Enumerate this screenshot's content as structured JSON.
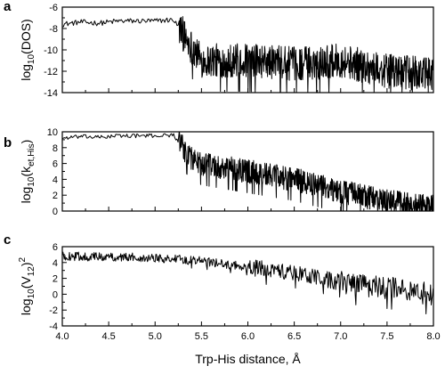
{
  "chart_data": [
    {
      "type": "line",
      "panel": "a",
      "ylabel": {
        "main": "log",
        "sub": "10",
        "rest": "(DOS)",
        "sup": ""
      },
      "xlim": [
        4.0,
        8.0
      ],
      "ylim": [
        -14,
        -6
      ],
      "yticks": [
        "-6",
        "-8",
        "-10",
        "-12",
        "-14"
      ],
      "xticks_shown": false,
      "approx_points": [
        [
          4.0,
          -7.6
        ],
        [
          4.2,
          -7.4
        ],
        [
          4.4,
          -7.5
        ],
        [
          4.6,
          -7.3
        ],
        [
          4.8,
          -7.3
        ],
        [
          5.0,
          -7.3
        ],
        [
          5.15,
          -7.2
        ],
        [
          5.2,
          -7.2
        ],
        [
          5.3,
          -8.5
        ],
        [
          5.4,
          -9.8
        ],
        [
          5.5,
          -11.0
        ],
        [
          6.0,
          -11.0
        ],
        [
          6.5,
          -11.3
        ],
        [
          7.0,
          -11.0
        ],
        [
          7.5,
          -12.0
        ],
        [
          8.0,
          -12.3
        ]
      ]
    },
    {
      "type": "line",
      "panel": "b",
      "ylabel": {
        "main": "log",
        "sub": "10",
        "rest": "(k",
        "sub2": "et,His",
        "tail": ")"
      },
      "xlim": [
        4.0,
        8.0
      ],
      "ylim": [
        0,
        10
      ],
      "yticks": [
        "10",
        "8",
        "6",
        "4",
        "2",
        "0"
      ],
      "xticks_shown": false,
      "approx_points": [
        [
          4.0,
          9.2
        ],
        [
          4.2,
          9.4
        ],
        [
          4.4,
          9.3
        ],
        [
          4.6,
          9.5
        ],
        [
          4.8,
          9.5
        ],
        [
          5.0,
          9.5
        ],
        [
          5.2,
          9.6
        ],
        [
          5.3,
          8.0
        ],
        [
          5.4,
          6.5
        ],
        [
          5.5,
          6.0
        ],
        [
          6.0,
          5.0
        ],
        [
          6.5,
          4.0
        ],
        [
          7.0,
          2.5
        ],
        [
          7.5,
          1.2
        ],
        [
          8.0,
          0.5
        ]
      ]
    },
    {
      "type": "line",
      "panel": "c",
      "ylabel": {
        "main": "log",
        "sub": "10",
        "rest": "(V",
        "sub2": "12",
        "tail": ")",
        "sup": "2"
      },
      "xlim": [
        4.0,
        8.0
      ],
      "ylim": [
        -4,
        6
      ],
      "yticks": [
        "6",
        "4",
        "2",
        "0",
        "-2",
        "-4"
      ],
      "xticks": [
        "4.0",
        "4.5",
        "5.0",
        "5.5",
        "6.0",
        "6.5",
        "7.0",
        "7.5",
        "8.0"
      ],
      "xlabel": "Trp-His distance, Å",
      "approx_points": [
        [
          4.0,
          4.8
        ],
        [
          4.5,
          4.7
        ],
        [
          5.0,
          4.6
        ],
        [
          5.5,
          4.2
        ],
        [
          6.0,
          3.4
        ],
        [
          6.5,
          2.7
        ],
        [
          7.0,
          1.5
        ],
        [
          7.5,
          0.8
        ],
        [
          8.0,
          0.0
        ]
      ]
    }
  ]
}
